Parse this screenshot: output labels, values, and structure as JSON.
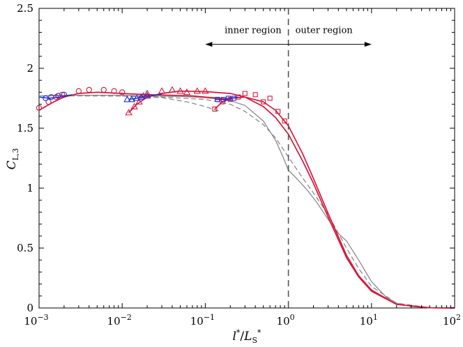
{
  "chart_data": {
    "type": "line",
    "x_scale": "log",
    "xlim": [
      0.001,
      100
    ],
    "ylim": [
      0,
      2.5
    ],
    "x_ticks": [
      0.001,
      0.01,
      0.1,
      1,
      10,
      100
    ],
    "x_tick_labels": [
      {
        "base": "10",
        "exp": "−3"
      },
      {
        "base": "10",
        "exp": "−2"
      },
      {
        "base": "10",
        "exp": "−1"
      },
      {
        "base": "10",
        "exp": "0"
      },
      {
        "base": "10",
        "exp": "1"
      },
      {
        "base": "10",
        "exp": "2"
      }
    ],
    "y_ticks": [
      0,
      0.5,
      1,
      1.5,
      2,
      2.5
    ],
    "y_tick_labels": [
      "0",
      "0.5",
      "1",
      "1.5",
      "2",
      "2.5"
    ],
    "xlabel": {
      "l": "l",
      "star": "*",
      "slash": "/",
      "L": "L",
      "sub": "S",
      "star2": "*"
    },
    "ylabel": {
      "C": "C",
      "sub": "L,3"
    },
    "annotations": {
      "inner": "inner region",
      "outer": "outer region",
      "divider_x": 1,
      "arrow_y": 2.2,
      "arrow_from": 0.1,
      "arrow_to": 10
    },
    "colors": {
      "red": "#d6173a",
      "blue": "#1f2fd0",
      "gray": "#8a8a8a",
      "dash": "#555555"
    },
    "series": [
      {
        "name": "outer-asymptote-solid",
        "style": "gray-solid",
        "x": [
          0.001,
          0.002,
          0.005,
          0.01,
          0.02,
          0.05,
          0.1,
          0.2,
          0.3,
          0.5,
          0.7,
          0.85,
          1.0,
          1.3,
          1.7,
          2.2,
          3.0,
          4.0,
          5.0
        ],
        "y": [
          1.77,
          1.775,
          1.775,
          1.775,
          1.77,
          1.765,
          1.755,
          1.73,
          1.69,
          1.56,
          1.4,
          1.27,
          1.15,
          1.07,
          0.98,
          0.88,
          0.74,
          0.62,
          0.56
        ]
      },
      {
        "name": "outer-model-solid-tail",
        "style": "gray-solid",
        "x": [
          5.0,
          7.0,
          10,
          15,
          20,
          30,
          50,
          100
        ],
        "y": [
          0.56,
          0.4,
          0.22,
          0.09,
          0.04,
          0.012,
          0.002,
          0.0
        ]
      },
      {
        "name": "gray-dashed-1",
        "style": "gray-dash",
        "x": [
          0.001,
          0.003,
          0.01,
          0.03,
          0.06,
          0.1,
          0.15
        ],
        "y": [
          1.77,
          1.77,
          1.768,
          1.755,
          1.72,
          1.68,
          1.64
        ]
      },
      {
        "name": "gray-dashed-2",
        "style": "gray-dash",
        "x": [
          0.01,
          0.03,
          0.1,
          0.2,
          0.3,
          0.5,
          0.7,
          1.0,
          1.5,
          2,
          3,
          5,
          7,
          10,
          20,
          50,
          100
        ],
        "y": [
          1.77,
          1.76,
          1.74,
          1.7,
          1.64,
          1.53,
          1.42,
          1.26,
          1.08,
          0.96,
          0.78,
          0.5,
          0.33,
          0.18,
          0.04,
          0.003,
          0.0
        ]
      },
      {
        "name": "red-fit-1",
        "style": "red-solid",
        "x": [
          0.001,
          0.0015,
          0.002,
          0.003,
          0.005,
          0.01,
          0.02,
          0.04,
          0.07,
          0.1,
          0.15,
          0.2
        ],
        "y": [
          1.65,
          1.72,
          1.76,
          1.79,
          1.8,
          1.79,
          1.78,
          1.775,
          1.77,
          1.76,
          1.75,
          1.74
        ]
      },
      {
        "name": "red-fit-2",
        "style": "red-solid",
        "x": [
          0.012,
          0.015,
          0.02,
          0.03,
          0.05,
          0.1,
          0.2,
          0.3,
          0.5,
          0.7,
          1.0,
          1.5,
          2,
          3,
          5,
          7,
          10,
          20,
          50,
          100
        ],
        "y": [
          1.63,
          1.7,
          1.76,
          1.79,
          1.81,
          1.805,
          1.79,
          1.76,
          1.68,
          1.59,
          1.45,
          1.22,
          1.04,
          0.76,
          0.42,
          0.26,
          0.14,
          0.03,
          0.002,
          0.0
        ]
      },
      {
        "name": "red-fit-3",
        "style": "red-solid",
        "x": [
          0.13,
          0.16,
          0.2,
          0.3,
          0.5,
          0.7,
          1.0,
          1.5,
          2,
          3,
          5,
          7,
          10,
          20,
          50,
          100
        ],
        "y": [
          1.66,
          1.72,
          1.75,
          1.76,
          1.72,
          1.65,
          1.52,
          1.28,
          1.08,
          0.79,
          0.44,
          0.27,
          0.15,
          0.03,
          0.002,
          0.0
        ]
      },
      {
        "name": "blue-fit",
        "style": "blue-solid",
        "x": [
          0.001,
          0.0013,
          0.0018,
          0.0025
        ],
        "y": [
          1.76,
          1.75,
          1.76,
          1.78
        ]
      },
      {
        "name": "blue-fit-2",
        "style": "blue-solid",
        "x": [
          0.012,
          0.015,
          0.02,
          0.03
        ],
        "y": [
          1.74,
          1.75,
          1.77,
          1.78
        ]
      },
      {
        "name": "blue-fit-3",
        "style": "blue-solid",
        "x": [
          0.13,
          0.17,
          0.2,
          0.25
        ],
        "y": [
          1.74,
          1.74,
          1.75,
          1.76
        ]
      }
    ],
    "markers": [
      {
        "name": "red-circles",
        "shape": "circle",
        "color": "red",
        "x": [
          0.001,
          0.0013,
          0.0016,
          0.0019,
          0.003,
          0.004,
          0.006,
          0.008,
          0.01
        ],
        "y": [
          1.67,
          1.72,
          1.76,
          1.78,
          1.81,
          1.82,
          1.82,
          1.81,
          1.8
        ]
      },
      {
        "name": "blue-circles",
        "shape": "circle",
        "color": "blue",
        "x": [
          0.0012,
          0.0014,
          0.0017,
          0.002
        ],
        "y": [
          1.75,
          1.76,
          1.77,
          1.78
        ]
      },
      {
        "name": "red-triangles",
        "shape": "triangle",
        "color": "red",
        "x": [
          0.012,
          0.014,
          0.016,
          0.018,
          0.02,
          0.03,
          0.04,
          0.05,
          0.06,
          0.08,
          0.1
        ],
        "y": [
          1.63,
          1.68,
          1.72,
          1.77,
          1.79,
          1.81,
          1.82,
          1.81,
          1.8,
          1.81,
          1.81
        ]
      },
      {
        "name": "blue-triangles",
        "shape": "triangle",
        "color": "blue",
        "x": [
          0.0115,
          0.013,
          0.015,
          0.017,
          0.02
        ],
        "y": [
          1.74,
          1.74,
          1.75,
          1.76,
          1.77
        ]
      },
      {
        "name": "red-squares",
        "shape": "square",
        "color": "red",
        "x": [
          0.13,
          0.16,
          0.2,
          0.25,
          0.3,
          0.4,
          0.5,
          0.6,
          0.75,
          0.9
        ],
        "y": [
          1.66,
          1.72,
          1.74,
          1.76,
          1.79,
          1.78,
          1.72,
          1.75,
          1.64,
          1.56
        ]
      },
      {
        "name": "blue-squares",
        "shape": "square",
        "color": "blue",
        "x": [
          0.14,
          0.165,
          0.19,
          0.22
        ],
        "y": [
          1.74,
          1.74,
          1.75,
          1.75
        ]
      }
    ]
  }
}
